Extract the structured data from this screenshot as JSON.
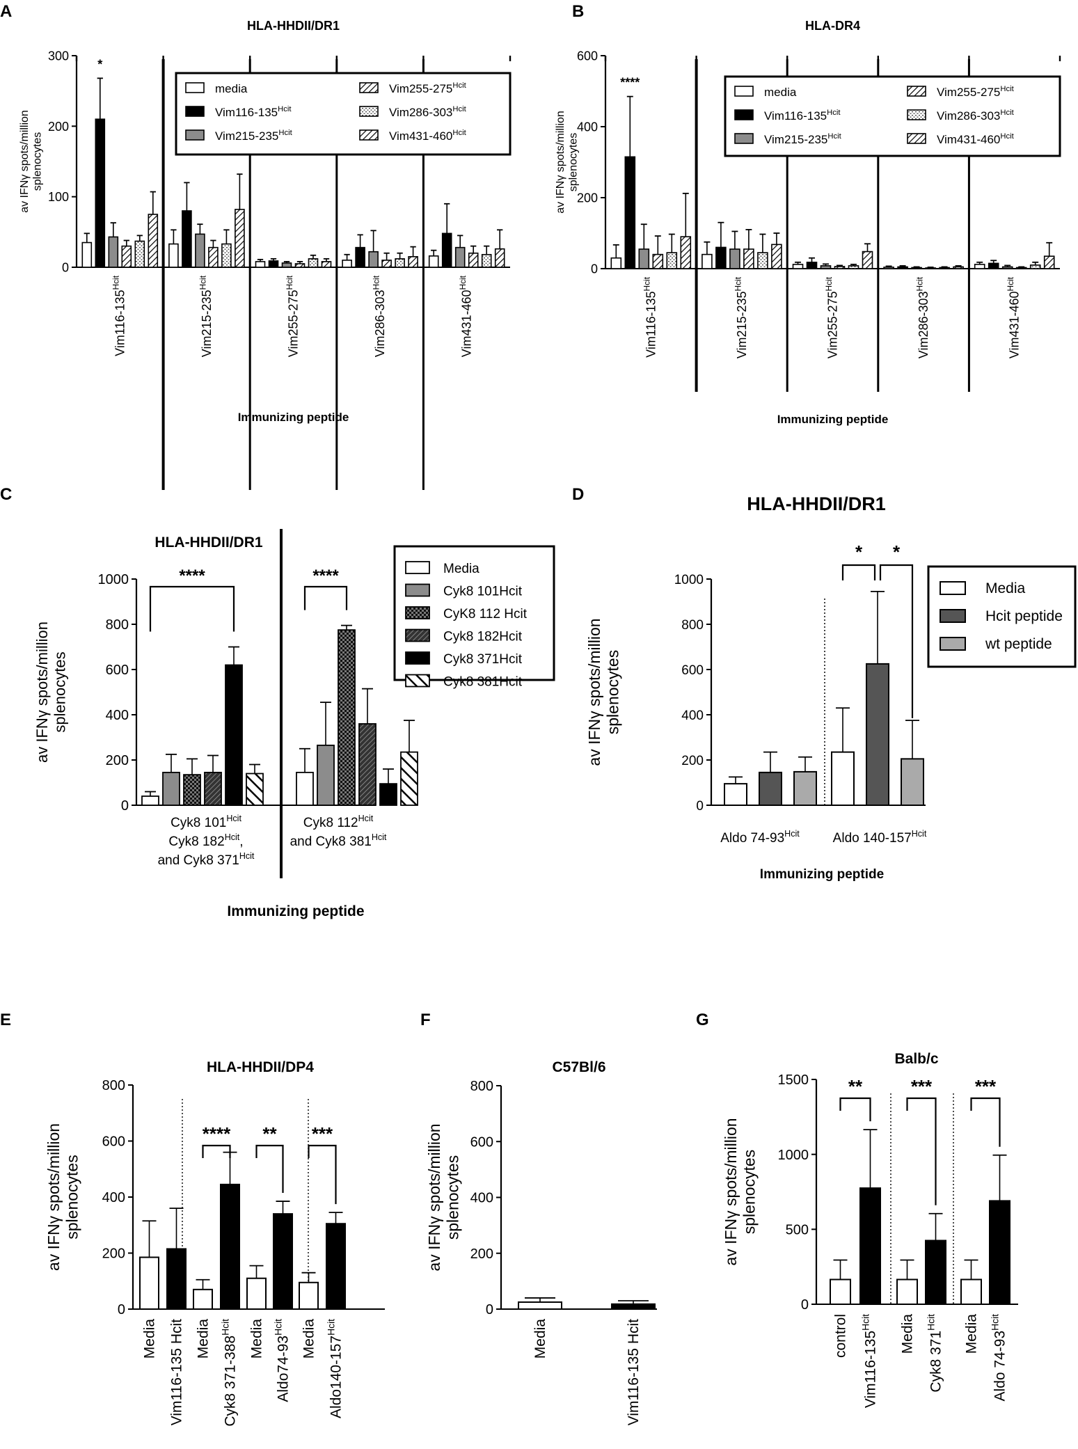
{
  "chart_data": [
    {
      "panel": "A",
      "type": "bar",
      "title": "HLA-HHDII/DR1",
      "ylabel": "av IFNγ spots/million splenocytes",
      "ylabel_lines": [
        "av IFNγ spots/million",
        "splenocytes"
      ],
      "xlabel": "Immunizing peptide",
      "ylim": [
        0,
        300
      ],
      "yticks": [
        0,
        100,
        200,
        300
      ],
      "groups": [
        {
          "label": "Vim116-135",
          "sup": "Hcit"
        },
        {
          "label": "Vim215-235",
          "sup": "Hcit"
        },
        {
          "label": "Vim255-275",
          "sup": "Hcit"
        },
        {
          "label": "Vim286-303",
          "sup": "Hcit"
        },
        {
          "label": "Vim431-460",
          "sup": "Hcit"
        }
      ],
      "series": [
        {
          "name": "media",
          "sup": "",
          "values": [
            35,
            33,
            8,
            10,
            16
          ],
          "errors": [
            13,
            20,
            3,
            8,
            8
          ]
        },
        {
          "name": "Vim116-135",
          "sup": "Hcit",
          "values": [
            210,
            80,
            9,
            28,
            48
          ],
          "errors": [
            58,
            40,
            3,
            18,
            42
          ]
        },
        {
          "name": "Vim215-235",
          "sup": "Hcit",
          "values": [
            43,
            47,
            6,
            22,
            28
          ],
          "errors": [
            20,
            14,
            2,
            30,
            17
          ]
        },
        {
          "name": "Vim255-275",
          "sup": "Hcit",
          "values": [
            30,
            28,
            5,
            10,
            20
          ],
          "errors": [
            8,
            10,
            3,
            10,
            10
          ]
        },
        {
          "name": "Vim286-303",
          "sup": "Hcit",
          "values": [
            37,
            33,
            12,
            12,
            18
          ],
          "errors": [
            8,
            20,
            5,
            8,
            12
          ]
        },
        {
          "name": "Vim431-460",
          "sup": "Hcit",
          "values": [
            75,
            82,
            8,
            15,
            26
          ],
          "errors": [
            32,
            50,
            4,
            14,
            27
          ]
        }
      ],
      "significance": [
        {
          "group": 0,
          "text": "*"
        }
      ]
    },
    {
      "panel": "B",
      "type": "bar",
      "title": "HLA-DR4",
      "ylabel": "av IFNγ spots/million splenocytes",
      "ylabel_lines": [
        "av IFNγ spots/million",
        "splenocytes"
      ],
      "xlabel": "Immunizing peptide",
      "ylim": [
        0,
        600
      ],
      "yticks": [
        0,
        200,
        400,
        600
      ],
      "groups": [
        {
          "label": "Vim116-135",
          "sup": "Hcit"
        },
        {
          "label": "Vim215-235",
          "sup": "Hcit"
        },
        {
          "label": "Vim255-275",
          "sup": "Hcit"
        },
        {
          "label": "Vim286-303",
          "sup": "Hcit"
        },
        {
          "label": "Vim431-460",
          "sup": "Hcit"
        }
      ],
      "series": [
        {
          "name": "media",
          "sup": "",
          "values": [
            30,
            40,
            12,
            4,
            12
          ],
          "errors": [
            37,
            35,
            6,
            3,
            6
          ]
        },
        {
          "name": "Vim116-135",
          "sup": "Hcit",
          "values": [
            315,
            60,
            18,
            5,
            15
          ],
          "errors": [
            170,
            70,
            12,
            3,
            8
          ]
        },
        {
          "name": "Vim215-235",
          "sup": "Hcit",
          "values": [
            55,
            55,
            8,
            3,
            5
          ],
          "errors": [
            70,
            50,
            5,
            2,
            4
          ]
        },
        {
          "name": "Vim255-275",
          "sup": "Hcit",
          "values": [
            40,
            55,
            6,
            2,
            3
          ],
          "errors": [
            52,
            55,
            3,
            2,
            2
          ]
        },
        {
          "name": "Vim286-303",
          "sup": "Hcit",
          "values": [
            45,
            45,
            8,
            3,
            10
          ],
          "errors": [
            52,
            52,
            4,
            2,
            8
          ]
        },
        {
          "name": "Vim431-460",
          "sup": "Hcit",
          "values": [
            90,
            68,
            48,
            5,
            35
          ],
          "errors": [
            122,
            32,
            22,
            3,
            38
          ]
        }
      ],
      "significance": [
        {
          "group": 0,
          "text": "****"
        }
      ]
    },
    {
      "panel": "C",
      "type": "bar",
      "title": "HLA-HHDII/DR1",
      "ylabel": "av IFNγ spots/million splenocytes",
      "ylabel_lines": [
        "av IFNγ spots/million",
        "splenocytes"
      ],
      "xlabel": "Immunizing peptide",
      "ylim": [
        0,
        1000
      ],
      "yticks": [
        0,
        200,
        400,
        600,
        800,
        1000
      ],
      "groups": [
        {
          "lines": [
            [
              {
                "t": "Cyk8 101"
              },
              {
                "t": "Hcit",
                "sup": true
              }
            ],
            [
              {
                "t": "Cyk8 182"
              },
              {
                "t": "Hcit",
                "sup": true
              },
              {
                "t": ","
              }
            ],
            [
              {
                "t": "and Cyk8 371"
              },
              {
                "t": "Hcit",
                "sup": true
              }
            ]
          ]
        },
        {
          "lines": [
            [
              {
                "t": "Cyk8 112"
              },
              {
                "t": "Hcit",
                "sup": true
              }
            ],
            [
              {
                "t": "and Cyk8 381"
              },
              {
                "t": "Hcit",
                "sup": true
              }
            ]
          ]
        }
      ],
      "series": [
        {
          "name": "Media",
          "values": [
            40,
            145
          ],
          "errors": [
            20,
            105
          ]
        },
        {
          "name": "Cyk8 101Hcit",
          "values": [
            145,
            265
          ],
          "errors": [
            80,
            190
          ]
        },
        {
          "name": "CyK8 112 Hcit",
          "values": [
            135,
            775
          ],
          "errors": [
            70,
            20
          ]
        },
        {
          "name": "Cyk8 182Hcit",
          "values": [
            145,
            360
          ],
          "errors": [
            75,
            155
          ]
        },
        {
          "name": "Cyk8 371Hcit",
          "values": [
            620,
            95
          ],
          "errors": [
            80,
            65
          ]
        },
        {
          "name": "Cyk8 381Hcit",
          "values": [
            140,
            235
          ],
          "errors": [
            40,
            140
          ]
        }
      ],
      "significance": [
        {
          "group": 0,
          "from": 0,
          "to": 4,
          "text": "****"
        },
        {
          "group": 1,
          "from": 0,
          "to": 2,
          "text": "****"
        }
      ]
    },
    {
      "panel": "D",
      "type": "bar",
      "title": "HLA-HHDII/DR1",
      "ylabel": "av IFNγ spots/million splenocytes",
      "ylabel_lines": [
        "av IFNγ spots/million",
        "splenocytes"
      ],
      "xlabel": "Immunizing peptide",
      "ylim": [
        0,
        1000
      ],
      "yticks": [
        0,
        200,
        400,
        600,
        800,
        1000
      ],
      "groups": [
        {
          "label": "Aldo 74-93",
          "sup": "Hcit"
        },
        {
          "label": "Aldo 140-157",
          "sup": "Hcit"
        }
      ],
      "series": [
        {
          "name": "Media",
          "values": [
            95,
            235
          ],
          "errors": [
            30,
            195
          ]
        },
        {
          "name": "Hcit peptide",
          "values": [
            145,
            625
          ],
          "errors": [
            90,
            320
          ]
        },
        {
          "name": "wt peptide",
          "values": [
            148,
            205
          ],
          "errors": [
            65,
            170
          ]
        }
      ],
      "significance": [
        {
          "group": 1,
          "from": 0,
          "to": 1,
          "text": "*"
        },
        {
          "group": 1,
          "from": 1,
          "to": 2,
          "text": "*"
        }
      ]
    },
    {
      "panel": "E",
      "type": "bar",
      "title": "HLA-HHDII/DP4",
      "ylabel": "av IFNγ spots/million splenocytes",
      "ylabel_lines": [
        "av IFNγ spots/million",
        "splenocytes"
      ],
      "ylim": [
        0,
        800
      ],
      "yticks": [
        0,
        200,
        400,
        600,
        800
      ],
      "bars": [
        {
          "label": "Media",
          "sup": "",
          "value": 185,
          "error": 130,
          "fill": "white"
        },
        {
          "label": "Vim116-135 Hcit",
          "sup": "",
          "value": 215,
          "error": 145,
          "fill": "black"
        },
        {
          "label": "Media",
          "sup": "",
          "value": 70,
          "error": 35,
          "fill": "white"
        },
        {
          "label": "Cyk8 371-388",
          "sup": "Hcit",
          "value": 445,
          "error": 115,
          "fill": "black"
        },
        {
          "label": "Media",
          "sup": "",
          "value": 110,
          "error": 45,
          "fill": "white"
        },
        {
          "label": "Aldo74-93",
          "sup": "Hcit",
          "value": 340,
          "error": 45,
          "fill": "black"
        },
        {
          "label": "Media",
          "sup": "",
          "value": 95,
          "error": 35,
          "fill": "white"
        },
        {
          "label": "Aldo140-157",
          "sup": "Hcit",
          "value": 305,
          "error": 40,
          "fill": "black"
        }
      ],
      "significance": [
        {
          "from": 2,
          "to": 3,
          "text": "****"
        },
        {
          "from": 4,
          "to": 5,
          "text": "**"
        },
        {
          "from": 6,
          "to": 7,
          "text": "***"
        }
      ]
    },
    {
      "panel": "F",
      "type": "bar",
      "title": "C57Bl/6",
      "ylabel": "av IFNγ spots/million splenocytes",
      "ylabel_lines": [
        "av IFNγ spots/million",
        "splenocytes"
      ],
      "ylim": [
        0,
        800
      ],
      "yticks": [
        0,
        200,
        400,
        600,
        800
      ],
      "bars": [
        {
          "label": "Media",
          "sup": "",
          "value": 25,
          "error": 15,
          "fill": "white"
        },
        {
          "label": "Vim116-135 Hcit",
          "sup": "",
          "value": 18,
          "error": 12,
          "fill": "black"
        }
      ],
      "significance": []
    },
    {
      "panel": "G",
      "type": "bar",
      "title": "Balb/c",
      "ylabel": "av IFNγ spots/million splenocytes",
      "ylabel_lines": [
        "av IFNγ spots/million",
        "splenocytes"
      ],
      "ylim": [
        0,
        1500
      ],
      "yticks": [
        0,
        500,
        1000,
        1500
      ],
      "bars": [
        {
          "label": "control",
          "sup": "",
          "value": 165,
          "error": 130,
          "fill": "white"
        },
        {
          "label": "Vim116-135",
          "sup": "Hcit",
          "value": 775,
          "error": 390,
          "fill": "black"
        },
        {
          "label": "Media",
          "sup": "",
          "value": 165,
          "error": 130,
          "fill": "white"
        },
        {
          "label": "Cyk8 371",
          "sup": "Hcit",
          "value": 425,
          "error": 180,
          "fill": "black"
        },
        {
          "label": "Media",
          "sup": "",
          "value": 165,
          "error": 130,
          "fill": "white"
        },
        {
          "label": "Aldo 74-93",
          "sup": "Hcit",
          "value": 690,
          "error": 305,
          "fill": "black"
        }
      ],
      "significance": [
        {
          "from": 0,
          "to": 1,
          "text": "**"
        },
        {
          "from": 2,
          "to": 3,
          "text": "***"
        },
        {
          "from": 4,
          "to": 5,
          "text": "***"
        }
      ]
    }
  ]
}
